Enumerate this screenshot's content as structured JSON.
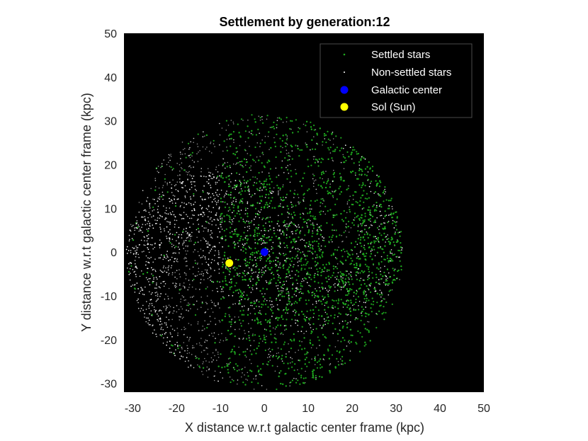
{
  "chart_data": {
    "type": "scatter",
    "title": "Settlement by generation:12",
    "xlabel": "X distance w.r.t galactic center frame (kpc)",
    "ylabel": "Y distance w.r.t galactic center frame (kpc)",
    "xlim": [
      -32,
      50
    ],
    "ylim": [
      -32,
      50
    ],
    "xticks": [
      -30,
      -20,
      -10,
      0,
      10,
      20,
      30,
      40,
      50
    ],
    "yticks": [
      -30,
      -20,
      -10,
      0,
      10,
      20,
      30,
      40,
      50
    ],
    "xtick_labels": [
      "-30",
      "-20",
      "-10",
      "0",
      "10",
      "20",
      "30",
      "40",
      "50"
    ],
    "ytick_labels": [
      "-30",
      "-20",
      "-10",
      "0",
      "10",
      "20",
      "30",
      "40",
      "50"
    ],
    "background": "#000000",
    "galaxy_radius": 31.5,
    "legend_position": "top-right",
    "series": [
      {
        "name": "Settled stars",
        "color": "#1faa1f",
        "marker": "dot",
        "note_region": "settled region spans roughly x from -12 to 32, concentrated on the right half of the disc"
      },
      {
        "name": "Non-settled stars",
        "color": "#ffffff",
        "marker": "dot"
      },
      {
        "name": "Galactic center",
        "color": "#0000ff",
        "marker": "filled-circle",
        "x": [
          0
        ],
        "y": [
          0
        ]
      },
      {
        "name": "Sol (Sun)",
        "color": "#ffff00",
        "marker": "filled-circle",
        "x": [
          -8
        ],
        "y": [
          -2.5
        ]
      }
    ]
  }
}
